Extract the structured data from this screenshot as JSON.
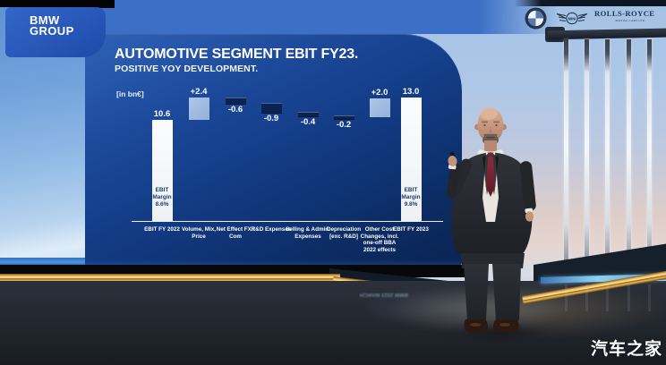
{
  "page": {
    "watermark": "汽车之家"
  },
  "header": {
    "brand_line1": "BMW",
    "brand_line2": "GROUP",
    "logo_bmw_label": "BMW",
    "logo_mini_label": "MINI",
    "logo_rr_line1": "ROLLS-ROYCE",
    "logo_rr_line2": "MOTOR CARS LTD"
  },
  "slide": {
    "title": "AUTOMOTIVE SEGMENT EBIT FY23.",
    "subtitle": "POSITIVE YOY DEVELOPMENT.",
    "unit_label": "[in bn€]"
  },
  "floor": {
    "reflection_text": "BMW 2023 MARCH"
  },
  "chart_data": {
    "type": "bar",
    "subtype": "waterfall",
    "title": "AUTOMOTIVE SEGMENT EBIT FY23.",
    "subtitle": "POSITIVE YOY DEVELOPMENT.",
    "unit": "bn€",
    "unit_label": "[in bn€]",
    "categories": [
      "EBIT FY 2022",
      "Volume, Mix, Price",
      "Net Effect FX / Com",
      "R&D Expenses",
      "Selling & Admin. Expenses",
      "Depreciation [exc. R&D]",
      "Other Cost Changes, incl. one-off BBA 2022 effects",
      "EBIT FY 2023"
    ],
    "values": [
      10.6,
      2.4,
      -0.6,
      -0.9,
      -0.4,
      -0.2,
      2.0,
      13.0
    ],
    "value_labels": [
      "10.6",
      "+2.4",
      "-0.6",
      "-0.9",
      "-0.4",
      "-0.2",
      "+2.0",
      "13.0"
    ],
    "bar_roles": [
      "total",
      "increase",
      "decrease",
      "decrease",
      "decrease",
      "decrease",
      "increase",
      "total"
    ],
    "bar_annotations": [
      "EBIT Margin 8.6%",
      null,
      null,
      null,
      null,
      null,
      null,
      "EBIT Margin 9.8%"
    ],
    "colors": {
      "total_bar": "#f4f6f7",
      "increase_bar": "#9db9e2",
      "decrease_bar": "#0a2350",
      "label_text": "#ffffff",
      "annotation_text": "#1b3d70",
      "slide_background": "#123a82"
    },
    "ylim": [
      0,
      13.0
    ],
    "axis": {
      "baseline_visible": true,
      "gridlines": false,
      "legend": null,
      "xlabel": "",
      "ylabel": ""
    }
  }
}
